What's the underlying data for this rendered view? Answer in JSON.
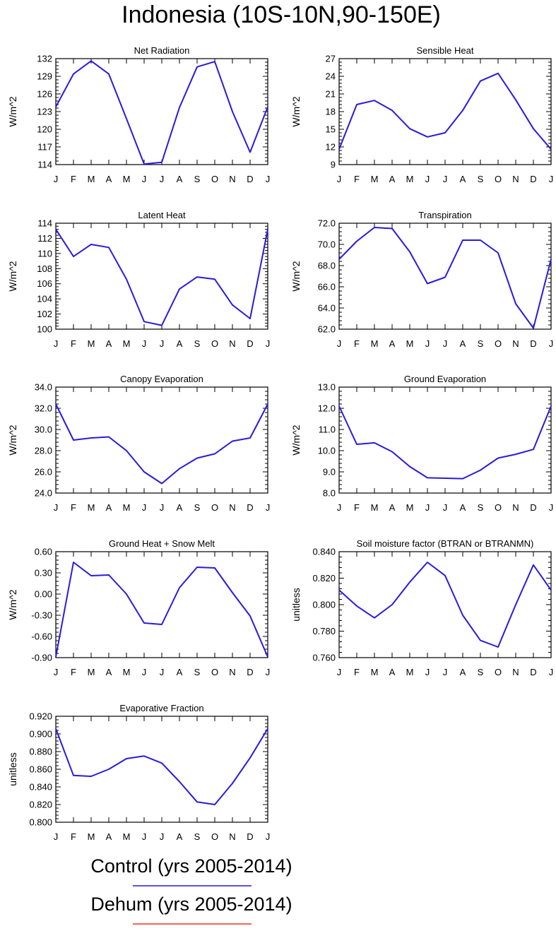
{
  "title": "Indonesia (10S-10N,90-150E)",
  "months": [
    "J",
    "F",
    "M",
    "A",
    "M",
    "J",
    "J",
    "A",
    "S",
    "O",
    "N",
    "D",
    "J"
  ],
  "colors": {
    "control": "#2a1ae0",
    "dehum": "#f03020",
    "axis": "#000000"
  },
  "legend": [
    {
      "label": "Control (yrs 2005-2014)",
      "color_key": "control"
    },
    {
      "label": "Dehum (yrs 2005-2014)",
      "color_key": "dehum"
    }
  ],
  "chart_data": [
    {
      "type": "line",
      "title": "Net Radiation",
      "ylabel": "W/m^2",
      "ylim": [
        114,
        132
      ],
      "yticks": [
        "114",
        "117",
        "120",
        "123",
        "126",
        "129",
        "132"
      ],
      "series": [
        {
          "name": "Control",
          "values": [
            123.8,
            129.4,
            131.6,
            129.4,
            121.8,
            114.1,
            114.4,
            123.7,
            130.6,
            131.5,
            123.0,
            116.1,
            123.8
          ]
        }
      ]
    },
    {
      "type": "line",
      "title": "Sensible Heat",
      "ylabel": "W/m^2",
      "ylim": [
        9,
        27
      ],
      "yticks": [
        "9",
        "12",
        "15",
        "18",
        "21",
        "24",
        "27"
      ],
      "series": [
        {
          "name": "Control",
          "values": [
            11.6,
            19.2,
            19.9,
            18.2,
            15.1,
            13.7,
            14.4,
            18.2,
            23.2,
            24.5,
            20.0,
            15.1,
            11.6
          ]
        }
      ]
    },
    {
      "type": "line",
      "title": "Latent Heat",
      "ylabel": "W/m^2",
      "ylim": [
        100,
        114
      ],
      "yticks": [
        "100",
        "102",
        "104",
        "106",
        "108",
        "110",
        "112",
        "114"
      ],
      "series": [
        {
          "name": "Control",
          "values": [
            113.2,
            109.6,
            111.2,
            110.8,
            106.6,
            101.0,
            100.5,
            105.3,
            106.9,
            106.6,
            103.2,
            101.4,
            113.2
          ]
        }
      ]
    },
    {
      "type": "line",
      "title": "Transpiration",
      "ylabel": "W/m^2",
      "ylim": [
        62,
        72
      ],
      "yticks": [
        "62.0",
        "64.0",
        "66.0",
        "68.0",
        "70.0",
        "72.0"
      ],
      "series": [
        {
          "name": "Control",
          "values": [
            68.6,
            70.3,
            71.6,
            71.5,
            69.3,
            66.3,
            66.9,
            70.4,
            70.4,
            69.2,
            64.4,
            62.1,
            68.6
          ]
        }
      ]
    },
    {
      "type": "line",
      "title": "Canopy Evaporation",
      "ylabel": "W/m^2",
      "ylim": [
        24,
        34
      ],
      "yticks": [
        "24.0",
        "26.0",
        "28.0",
        "30.0",
        "32.0",
        "34.0"
      ],
      "series": [
        {
          "name": "Control",
          "values": [
            32.4,
            29.0,
            29.2,
            29.3,
            28.0,
            26.0,
            24.9,
            26.3,
            27.3,
            27.7,
            28.9,
            29.2,
            32.4
          ]
        }
      ]
    },
    {
      "type": "line",
      "title": "Ground Evaporation",
      "ylabel": "W/m^2",
      "ylim": [
        8,
        13
      ],
      "yticks": [
        "8.0",
        "9.0",
        "10.0",
        "11.0",
        "12.0",
        "13.0"
      ],
      "series": [
        {
          "name": "Control",
          "values": [
            12.1,
            10.3,
            10.37,
            9.95,
            9.25,
            8.72,
            8.7,
            8.68,
            9.08,
            9.65,
            9.83,
            10.06,
            12.1
          ]
        }
      ]
    },
    {
      "type": "line",
      "title": "Ground Heat + Snow Melt",
      "ylabel": "W/m^2",
      "ylim": [
        -0.9,
        0.6
      ],
      "yticks": [
        "-0.90",
        "-0.60",
        "-0.30",
        "0.00",
        "0.30",
        "0.60"
      ],
      "series": [
        {
          "name": "Control",
          "values": [
            -0.89,
            0.45,
            0.26,
            0.27,
            0.0,
            -0.41,
            -0.43,
            0.09,
            0.38,
            0.37,
            0.02,
            -0.31,
            -0.89
          ]
        }
      ]
    },
    {
      "type": "line",
      "title": "Soil moisture factor (BTRAN or BTRANMN)",
      "ylabel": "unitless",
      "ylim": [
        0.76,
        0.84
      ],
      "yticks": [
        "0.760",
        "0.780",
        "0.800",
        "0.820",
        "0.840"
      ],
      "series": [
        {
          "name": "Control",
          "values": [
            0.811,
            0.799,
            0.79,
            0.8,
            0.817,
            0.832,
            0.822,
            0.792,
            0.773,
            0.768,
            0.8,
            0.83,
            0.811
          ]
        }
      ]
    },
    {
      "type": "line",
      "title": "Evaporative Fraction",
      "ylabel": "unitless",
      "ylim": [
        0.8,
        0.92
      ],
      "yticks": [
        "0.800",
        "0.820",
        "0.840",
        "0.860",
        "0.880",
        "0.900",
        "0.920"
      ],
      "series": [
        {
          "name": "Control",
          "values": [
            0.906,
            0.853,
            0.852,
            0.86,
            0.872,
            0.875,
            0.867,
            0.846,
            0.823,
            0.82,
            0.844,
            0.873,
            0.906
          ]
        }
      ]
    }
  ]
}
